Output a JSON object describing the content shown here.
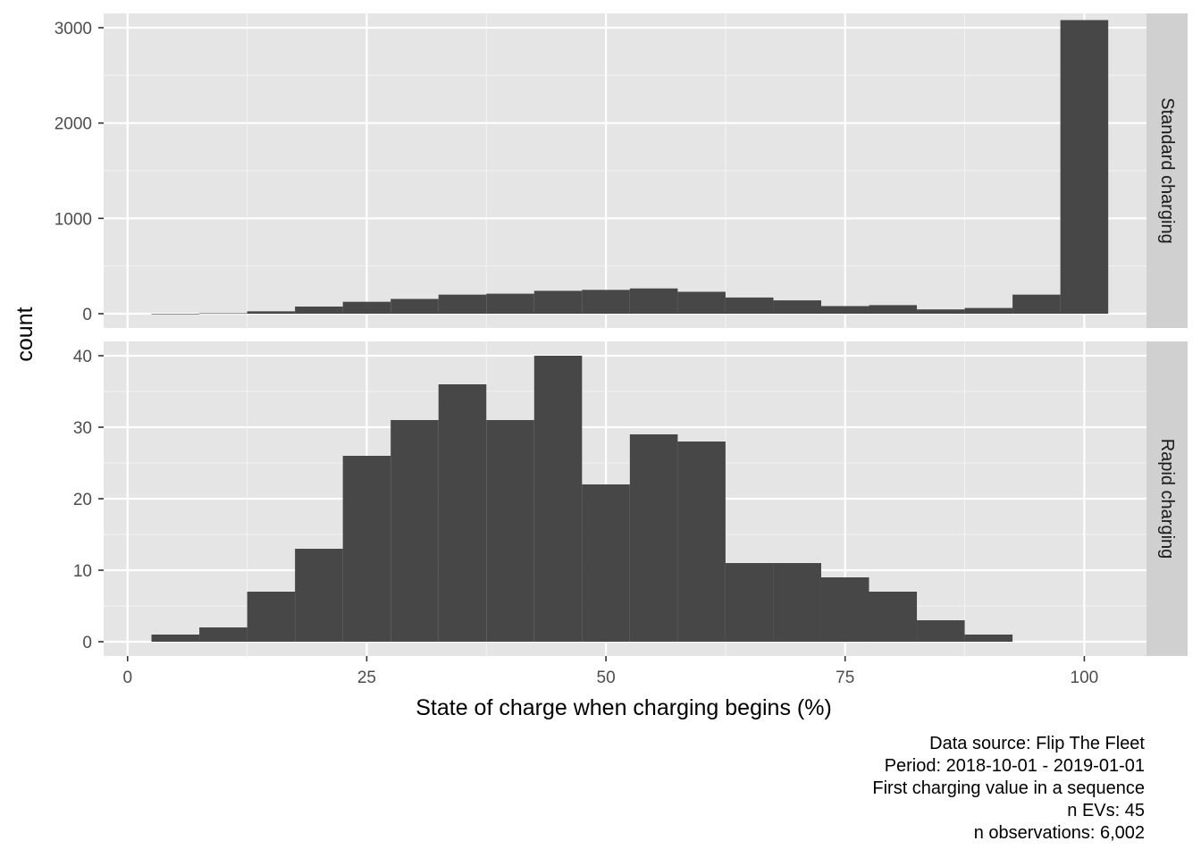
{
  "chart_data": {
    "type": "bar",
    "xlabel": "State of charge when charging begins (%)",
    "ylabel": "count",
    "x_ticks": [
      0,
      25,
      50,
      75,
      100
    ],
    "xlim": [
      -2.5,
      106.5
    ],
    "bin_width": 5,
    "bar_color": "#474747",
    "panel_background": "#e5e5e5",
    "strip_background": "#d0d0d0",
    "grid": true,
    "facets": [
      {
        "label": "Standard charging",
        "ylim": [
          -150,
          3150
        ],
        "y_ticks": [
          0,
          1000,
          2000,
          3000
        ],
        "series": [
          {
            "bin_centers": [
              5,
              10,
              15,
              20,
              25,
              30,
              35,
              40,
              45,
              50,
              55,
              60,
              65,
              70,
              75,
              80,
              85,
              90,
              95,
              100
            ],
            "values": [
              0,
              5,
              25,
              75,
              125,
              155,
              200,
              210,
              240,
              250,
              265,
              230,
              170,
              140,
              80,
              90,
              45,
              60,
              200,
              3080
            ]
          }
        ]
      },
      {
        "label": "Rapid charging",
        "ylim": [
          -2,
          42
        ],
        "y_ticks": [
          0,
          10,
          20,
          30,
          40
        ],
        "series": [
          {
            "bin_centers": [
              5,
              10,
              15,
              20,
              25,
              30,
              35,
              40,
              45,
              50,
              55,
              60,
              65,
              70,
              75,
              80,
              85,
              90
            ],
            "values": [
              1,
              2,
              7,
              13,
              26,
              31,
              36,
              31,
              40,
              22,
              29,
              28,
              11,
              11,
              9,
              7,
              3,
              1
            ]
          }
        ]
      }
    ]
  },
  "caption": {
    "lines": [
      "Data source: Flip The Fleet",
      "Period: 2018-10-01 - 2019-01-01",
      "First charging value in a sequence",
      "n EVs: 45",
      "n observations: 6,002"
    ]
  }
}
